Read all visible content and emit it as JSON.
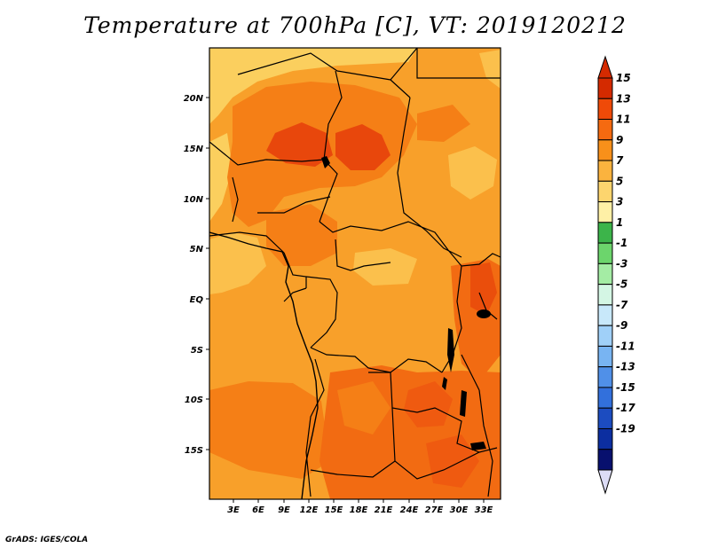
{
  "title": "Temperature at 700hPa [C], VT: 2019120212",
  "credit": "GrADS: IGES/COLA",
  "map": {
    "lon_labels": [
      "3E",
      "6E",
      "9E",
      "12E",
      "15E",
      "18E",
      "21E",
      "24E",
      "27E",
      "30E",
      "33E"
    ],
    "lat_labels": [
      "20N",
      "15N",
      "10N",
      "5N",
      "EQ",
      "5S",
      "10S",
      "15S"
    ]
  },
  "colorbar": {
    "labels": [
      "15",
      "13",
      "11",
      "9",
      "7",
      "5",
      "3",
      "1",
      "-1",
      "-3",
      "-5",
      "-7",
      "-9",
      "-11",
      "-13",
      "-15",
      "-17",
      "-19"
    ],
    "colors": [
      "#d42a00",
      "#ef4a08",
      "#f56a10",
      "#f8901a",
      "#fbb33e",
      "#fdd56e",
      "#fef0a6",
      "#3cb44a",
      "#6cd56c",
      "#a4eca4",
      "#d4f6e4",
      "#c8e8fa",
      "#a0d0f8",
      "#78b4f2",
      "#5090e8",
      "#3270dc",
      "#1c4cc0",
      "#0c2ea0",
      "#08106e"
    ],
    "arrow_top_color": "#d42a00",
    "arrow_bottom_color": "#dcdcf6"
  },
  "palette": {
    "t7_9": "#f8a82c",
    "t9_11": "#f8901a",
    "t11_13": "#f26b12",
    "t13_15": "#e8470c",
    "t5_7": "#fbcf5e"
  }
}
